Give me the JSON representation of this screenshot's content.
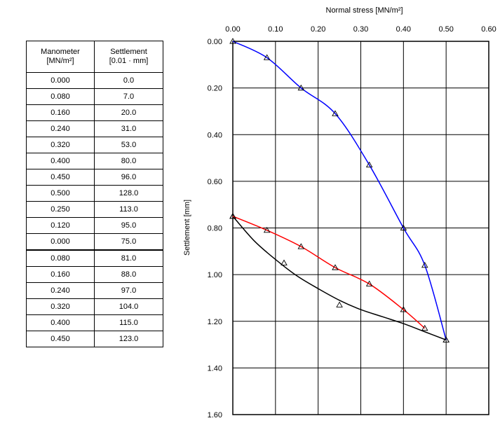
{
  "table": {
    "headers": [
      "Manometer\n[MN/m²]",
      "Settlement\n[0.01 · mm]"
    ],
    "header_lines": [
      [
        "Manometer",
        "[MN/m²]"
      ],
      [
        "Settlement",
        "[0.01 · mm]"
      ]
    ],
    "rows": [
      [
        "0.000",
        "0.0"
      ],
      [
        "0.080",
        "7.0"
      ],
      [
        "0.160",
        "20.0"
      ],
      [
        "0.240",
        "31.0"
      ],
      [
        "0.320",
        "53.0"
      ],
      [
        "0.400",
        "80.0"
      ],
      [
        "0.450",
        "96.0"
      ],
      [
        "0.500",
        "128.0"
      ],
      [
        "0.250",
        "113.0"
      ],
      [
        "0.120",
        "95.0"
      ],
      [
        "0.000",
        "75.0"
      ],
      [
        "0.080",
        "81.0"
      ],
      [
        "0.160",
        "88.0"
      ],
      [
        "0.240",
        "97.0"
      ],
      [
        "0.320",
        "104.0"
      ],
      [
        "0.400",
        "115.0"
      ],
      [
        "0.450",
        "123.0"
      ]
    ]
  },
  "chart_data": {
    "type": "scatter",
    "title": "",
    "xlabel": "Normal stress [MN/m²]",
    "ylabel": "Settlement [mm]",
    "xlim": [
      0,
      0.6
    ],
    "ylim": [
      0,
      1.6
    ],
    "y_inverted": true,
    "x_axis_position": "top",
    "grid": true,
    "xticks": [
      "0.00",
      "0.10",
      "0.20",
      "0.30",
      "0.40",
      "0.50",
      "0.60"
    ],
    "yticks": [
      "0.00",
      "0.20",
      "0.40",
      "0.60",
      "0.80",
      "1.00",
      "1.20",
      "1.40",
      "1.60"
    ],
    "series": [
      {
        "color": "#0000ff",
        "marker": "triangle",
        "points": [
          [
            0,
            0
          ],
          [
            0.08,
            0.07
          ],
          [
            0.16,
            0.2
          ],
          [
            0.24,
            0.31
          ],
          [
            0.32,
            0.53
          ],
          [
            0.4,
            0.8
          ],
          [
            0.45,
            0.96
          ],
          [
            0.5,
            1.28
          ]
        ]
      },
      {
        "color": "#000000",
        "marker": "triangle",
        "points": [
          [
            0.5,
            1.28
          ],
          [
            0.25,
            1.13
          ],
          [
            0.12,
            0.95
          ],
          [
            0,
            0.75
          ]
        ],
        "fit": [
          [
            0,
            0.75
          ],
          [
            0.05,
            0.855
          ],
          [
            0.1,
            0.935
          ],
          [
            0.15,
            1.005
          ],
          [
            0.2,
            1.06
          ],
          [
            0.25,
            1.11
          ],
          [
            0.3,
            1.15
          ],
          [
            0.35,
            1.18
          ],
          [
            0.4,
            1.21
          ],
          [
            0.45,
            1.245
          ],
          [
            0.5,
            1.28
          ]
        ]
      },
      {
        "color": "#ff0000",
        "marker": "triangle",
        "points": [
          [
            0,
            0.75
          ],
          [
            0.08,
            0.81
          ],
          [
            0.16,
            0.88
          ],
          [
            0.24,
            0.97
          ],
          [
            0.32,
            1.04
          ],
          [
            0.4,
            1.15
          ],
          [
            0.45,
            1.23
          ]
        ]
      }
    ]
  }
}
